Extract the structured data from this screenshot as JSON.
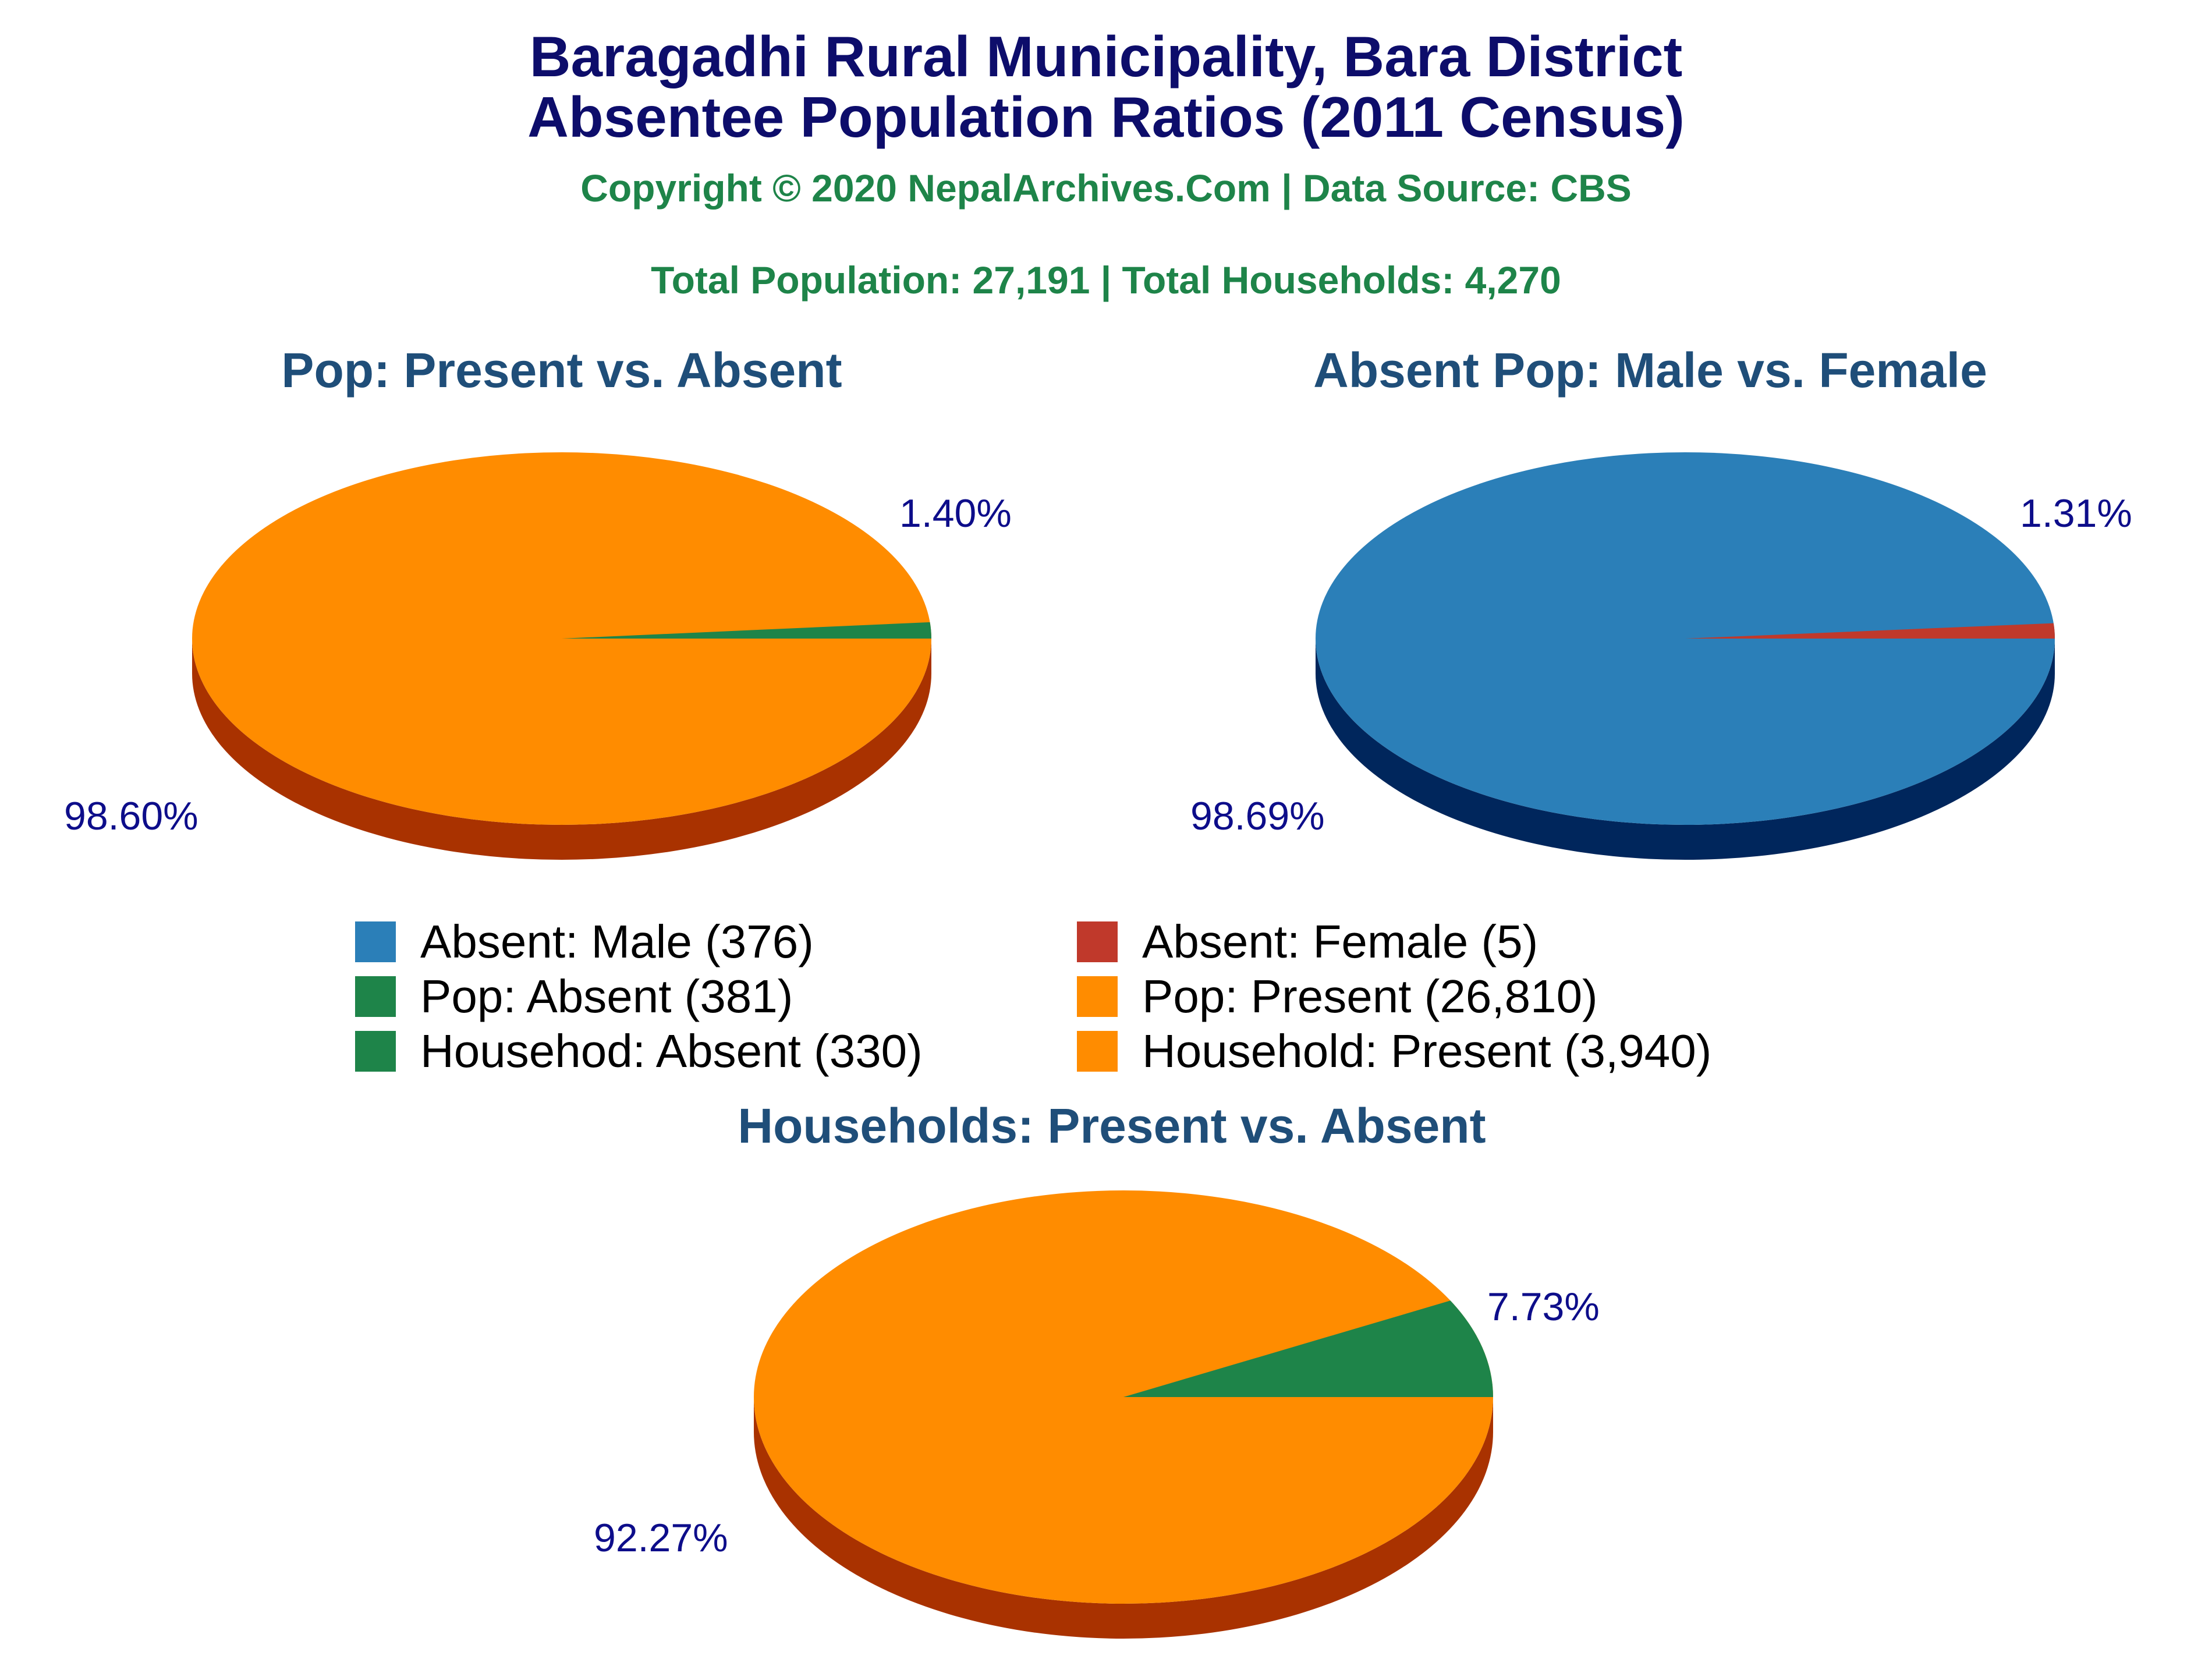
{
  "header": {
    "title_line1": "Baragadhi Rural Municipality, Bara District",
    "title_line2": "Absentee Population Ratios (2011 Census)",
    "copyright": "Copyright © 2020 NepalArchives.Com | Data Source: CBS",
    "totals": "Total Population: 27,191 | Total Households: 4,270"
  },
  "colors": {
    "title": "#0d0d6b",
    "subtitle": "#1e8449",
    "pie_title": "#1f4e79",
    "label": "#0d0d8a",
    "orange": "#ff8c00",
    "orange_side": "#a93200",
    "green": "#1e8449",
    "blue": "#2b7fb8",
    "blue_side": "#00265c",
    "red": "#c0392b"
  },
  "legend": [
    {
      "label": "Absent: Male (376)",
      "color": "#2b7fb8",
      "icon": "blue-square"
    },
    {
      "label": "Absent: Female (5)",
      "color": "#c0392b",
      "icon": "red-square"
    },
    {
      "label": "Pop: Absent (381)",
      "color": "#1e8449",
      "icon": "green-square"
    },
    {
      "label": "Pop: Present (26,810)",
      "color": "#ff8c00",
      "icon": "orange-square"
    },
    {
      "label": "Househod: Absent (330)",
      "color": "#1e8449",
      "icon": "green-square"
    },
    {
      "label": "Household: Present (3,940)",
      "color": "#ff8c00",
      "icon": "orange-square"
    }
  ],
  "chart_data": [
    {
      "type": "pie",
      "title": "Pop: Present vs. Absent",
      "slices": [
        {
          "name": "Pop: Absent",
          "value": 381,
          "percent": 1.4,
          "label": "1.40%",
          "color": "#1e8449"
        },
        {
          "name": "Pop: Present",
          "value": 26810,
          "percent": 98.6,
          "label": "98.60%",
          "color": "#ff8c00"
        }
      ],
      "side_color": "#a93200"
    },
    {
      "type": "pie",
      "title": "Absent Pop: Male vs. Female",
      "slices": [
        {
          "name": "Absent: Female",
          "value": 5,
          "percent": 1.31,
          "label": "1.31%",
          "color": "#c0392b"
        },
        {
          "name": "Absent: Male",
          "value": 376,
          "percent": 98.69,
          "label": "98.69%",
          "color": "#2b7fb8"
        }
      ],
      "side_color": "#00265c"
    },
    {
      "type": "pie",
      "title": "Households: Present vs. Absent",
      "slices": [
        {
          "name": "Househod: Absent",
          "value": 330,
          "percent": 7.73,
          "label": "7.73%",
          "color": "#1e8449"
        },
        {
          "name": "Household: Present",
          "value": 3940,
          "percent": 92.27,
          "label": "92.27%",
          "color": "#ff8c00"
        }
      ],
      "side_color": "#a93200"
    }
  ]
}
